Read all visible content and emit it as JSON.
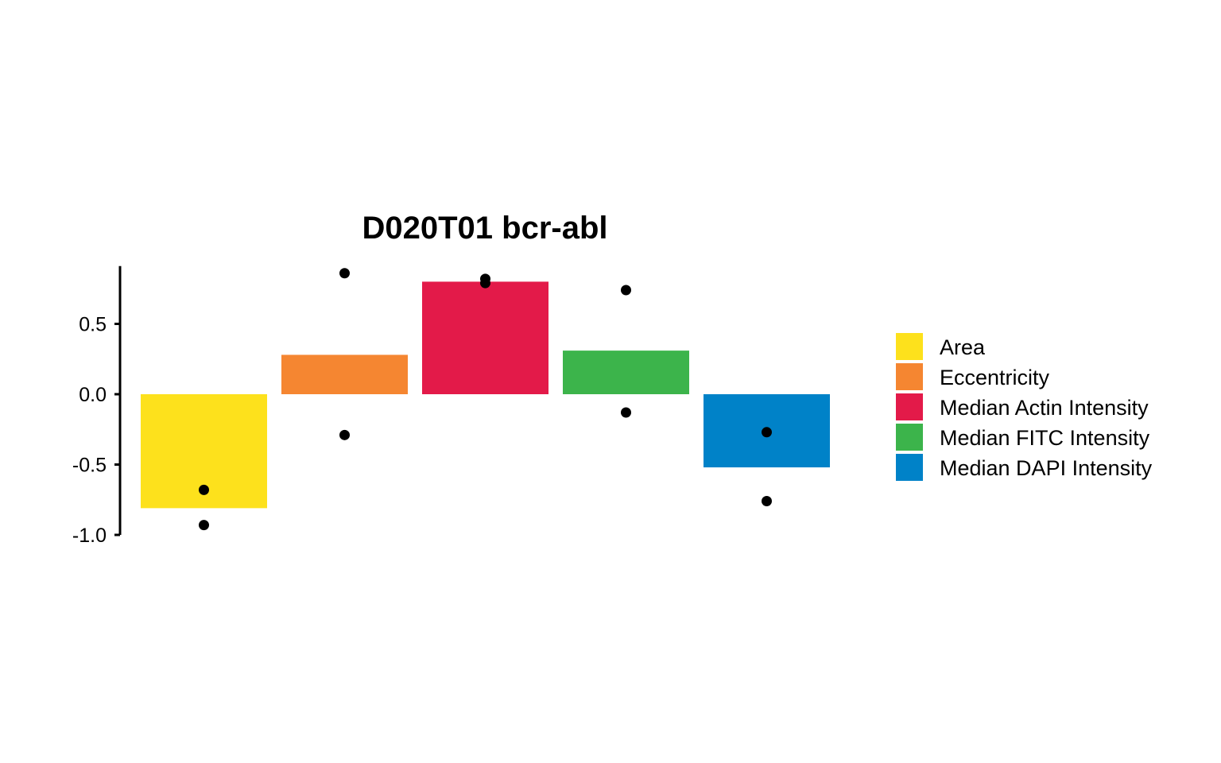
{
  "chart_data": {
    "type": "bar",
    "title": "D020T01 bcr-abl",
    "xlabel": "",
    "ylabel": "",
    "ylim": [
      -1.0,
      0.9
    ],
    "yticks": [
      {
        "value": 0.5,
        "label": "0.5"
      },
      {
        "value": 0.0,
        "label": "0.0"
      },
      {
        "value": -0.5,
        "label": "-0.5"
      },
      {
        "value": -1.0,
        "label": "-1.0"
      }
    ],
    "grid": false,
    "legend_position": "right",
    "series": [
      {
        "name": "Area",
        "value": -0.81,
        "color": "#FDE11C",
        "points": [
          -0.68,
          -0.93
        ]
      },
      {
        "name": "Eccentricity",
        "value": 0.28,
        "color": "#F58631",
        "points": [
          0.86,
          -0.29
        ]
      },
      {
        "name": "Median Actin Intensity",
        "value": 0.8,
        "color": "#E31A49",
        "points": [
          0.82,
          0.79
        ]
      },
      {
        "name": "Median FITC Intensity",
        "value": 0.31,
        "color": "#3CB44B",
        "points": [
          0.74,
          -0.13
        ]
      },
      {
        "name": "Median DAPI Intensity",
        "value": -0.52,
        "color": "#0082C8",
        "points": [
          -0.27,
          -0.76
        ]
      }
    ]
  }
}
